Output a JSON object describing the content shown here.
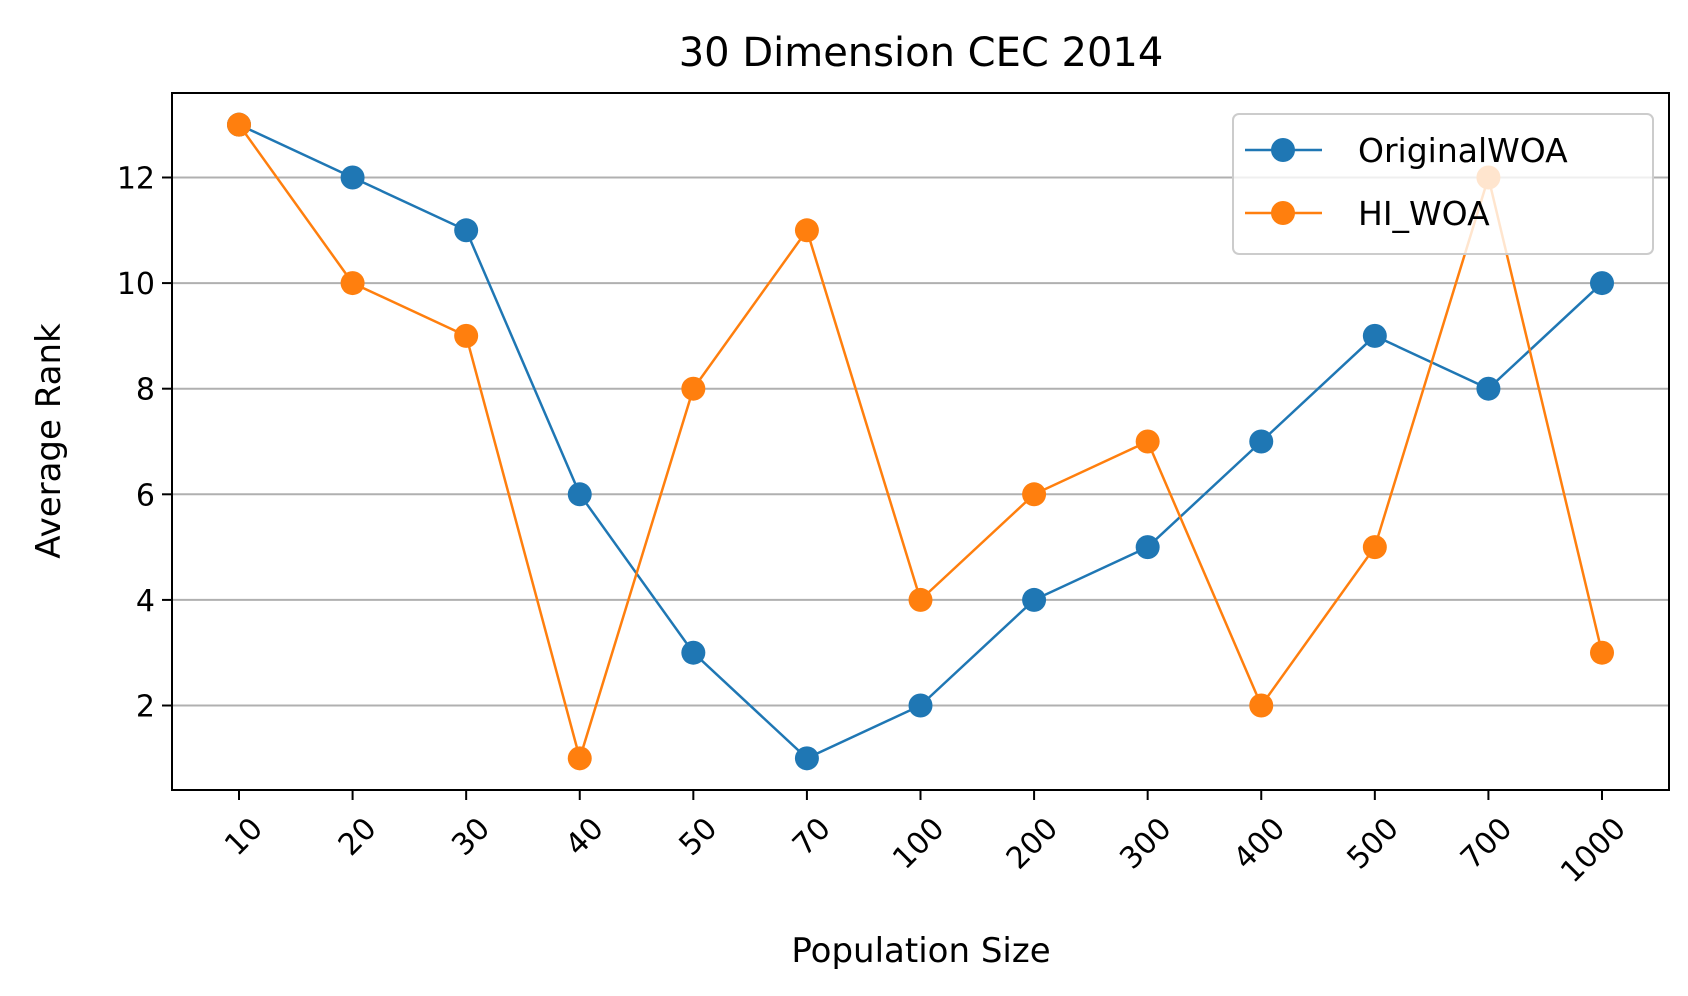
{
  "chart_data": {
    "type": "line",
    "title": "30 Dimension CEC 2014",
    "xlabel": "Population Size",
    "ylabel": "Average Rank",
    "categories": [
      "10",
      "20",
      "30",
      "40",
      "50",
      "70",
      "100",
      "200",
      "300",
      "400",
      "500",
      "700",
      "1000"
    ],
    "yticks": [
      2,
      4,
      6,
      8,
      10,
      12
    ],
    "ylim": [
      0.4,
      13.6
    ],
    "grid": "y",
    "legend_position": "top-right",
    "series": [
      {
        "name": "OriginalWOA",
        "color": "#1f77b4",
        "values": [
          13,
          12,
          11,
          6,
          3,
          1,
          2,
          4,
          5,
          7,
          9,
          8,
          10
        ]
      },
      {
        "name": "HI_WOA",
        "color": "#ff7f0e",
        "values": [
          13,
          10,
          9,
          1,
          8,
          11,
          4,
          6,
          7,
          2,
          5,
          12,
          3
        ]
      }
    ]
  }
}
